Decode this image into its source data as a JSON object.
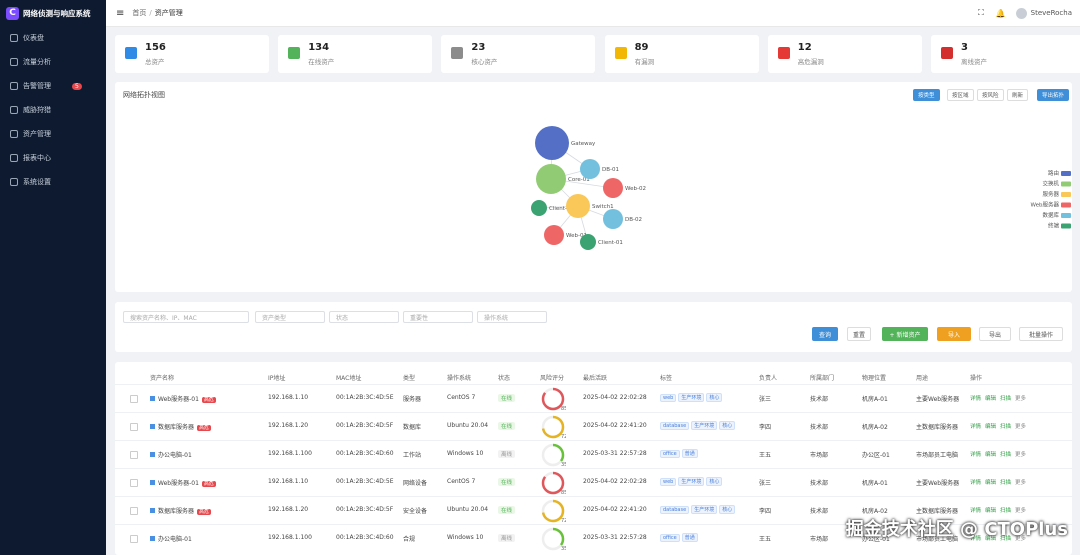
{
  "sidebar": {
    "logo": "网络侦测与响应系统",
    "menu": [
      {
        "label": "仪表盘"
      },
      {
        "label": "流量分析"
      },
      {
        "label": "告警管理",
        "badge": "5"
      },
      {
        "label": "威胁狩猎"
      },
      {
        "label": "资产管理"
      },
      {
        "label": "报表中心"
      },
      {
        "label": "系统设置"
      }
    ]
  },
  "header": {
    "breadcrumb": [
      "首页",
      "资产管理"
    ],
    "user": "SteveRocha"
  },
  "stats": [
    {
      "value": 156,
      "label": "总资产",
      "color": "#2f8be6"
    },
    {
      "value": 134,
      "label": "在线资产",
      "color": "#52b35a"
    },
    {
      "value": 23,
      "label": "核心资产",
      "color": "#8c8c8c"
    },
    {
      "value": 89,
      "label": "有漏洞",
      "color": "#f2b705"
    },
    {
      "value": 12,
      "label": "高危漏洞",
      "color": "#e53935"
    },
    {
      "value": 3,
      "label": "离线资产",
      "color": "#d32f2f"
    }
  ],
  "topology": {
    "title": "网络拓扑视图",
    "buttons": [
      "按类型",
      "按区域",
      "按风险",
      "刷新",
      "导出拓扑"
    ],
    "nodes": [
      {
        "label": "Gateway",
        "color": "#5470c6"
      },
      {
        "label": "Core-01",
        "color": "#91cc75"
      },
      {
        "label": "DB-01",
        "color": "#73c0de"
      },
      {
        "label": "Web-02",
        "color": "#ee6666"
      },
      {
        "label": "Client-02",
        "color": "#3ba272"
      },
      {
        "label": "Switch1",
        "color": "#fac858"
      },
      {
        "label": "DB-02",
        "color": "#73c0de"
      },
      {
        "label": "Web-01",
        "color": "#ee6666"
      },
      {
        "label": "Client-01",
        "color": "#3ba272"
      }
    ],
    "legend": [
      {
        "label": "路由",
        "color": "#5470c6"
      },
      {
        "label": "交换机",
        "color": "#91cc75"
      },
      {
        "label": "服务器",
        "color": "#fac858"
      },
      {
        "label": "Web服务器",
        "color": "#ee6666"
      },
      {
        "label": "数据库",
        "color": "#73c0de"
      },
      {
        "label": "终端",
        "color": "#3ba272"
      }
    ]
  },
  "filters": {
    "search": "搜索资产名称、IP、MAC",
    "selects": [
      "资产类型",
      "状态",
      "重要性",
      "操作系统"
    ],
    "buttons": [
      "查询",
      "重置",
      "+ 新增资产",
      "导入",
      "导出",
      "批量操作"
    ]
  },
  "table": {
    "columns": [
      "资产名称",
      "IP地址",
      "MAC地址",
      "类型",
      "操作系统",
      "状态",
      "风险评分",
      "最后活跃",
      "标签",
      "负责人",
      "所属部门",
      "物理位置",
      "用途",
      "操作"
    ],
    "actions": [
      "详情",
      "编辑",
      "扫描",
      "更多"
    ],
    "rows": [
      {
        "name": "Web服务器-01",
        "badge": "高危",
        "ip": "192.168.1.10",
        "mac": "00:1A:2B:3C:4D:5E",
        "type": "服务器",
        "os": "CentOS 7",
        "status": "在线",
        "risk": 85,
        "risk_color": "#e0575b",
        "last_active": "2025-04-02 22:02:28",
        "tags": [
          "web",
          "生产环境",
          "核心"
        ],
        "owner": "张三",
        "dept": "技术部",
        "location": "机房A-01",
        "usage": "主要Web服务器"
      },
      {
        "name": "数据库服务器",
        "badge": "高危",
        "ip": "192.168.1.20",
        "mac": "00:1A:2B:3C:4D:5F",
        "type": "数据库",
        "os": "Ubuntu 20.04",
        "status": "在线",
        "risk": 72,
        "risk_color": "#e6b422",
        "last_active": "2025-04-02 22:41:20",
        "tags": [
          "database",
          "生产环境",
          "核心"
        ],
        "owner": "李四",
        "dept": "技术部",
        "location": "机房A-02",
        "usage": "主数据库服务器"
      },
      {
        "name": "办公电脑-01",
        "ip": "192.168.1.100",
        "mac": "00:1A:2B:3C:4D:60",
        "type": "工作站",
        "os": "Windows 10",
        "status": "离线",
        "risk": 35,
        "risk_color": "#67c23a",
        "last_active": "2025-03-31 22:57:28",
        "tags": [
          "office",
          "普通"
        ],
        "owner": "王五",
        "dept": "市场部",
        "location": "办公区-01",
        "usage": "市场部员工电脑"
      },
      {
        "name": "Web服务器-01",
        "badge": "高危",
        "ip": "192.168.1.10",
        "mac": "00:1A:2B:3C:4D:5E",
        "type": "网络设备",
        "os": "CentOS 7",
        "status": "在线",
        "risk": 85,
        "risk_color": "#e0575b",
        "last_active": "2025-04-02 22:02:28",
        "tags": [
          "web",
          "生产环境",
          "核心"
        ],
        "owner": "张三",
        "dept": "技术部",
        "location": "机房A-01",
        "usage": "主要Web服务器"
      },
      {
        "name": "数据库服务器",
        "badge": "高危",
        "ip": "192.168.1.20",
        "mac": "00:1A:2B:3C:4D:5F",
        "type": "安全设备",
        "os": "Ubuntu 20.04",
        "status": "在线",
        "risk": 72,
        "risk_color": "#e6b422",
        "last_active": "2025-04-02 22:41:20",
        "tags": [
          "database",
          "生产环境",
          "核心"
        ],
        "owner": "李四",
        "dept": "技术部",
        "location": "机房A-02",
        "usage": "主数据库服务器"
      },
      {
        "name": "办公电脑-01",
        "ip": "192.168.1.100",
        "mac": "00:1A:2B:3C:4D:60",
        "type": "合规",
        "os": "Windows 10",
        "status": "离线",
        "risk": 35,
        "risk_color": "#67c23a",
        "last_active": "2025-03-31 22:57:28",
        "tags": [
          "office",
          "普通"
        ],
        "owner": "王五",
        "dept": "市场部",
        "location": "办公区-01",
        "usage": "市场部员工电脑"
      }
    ]
  },
  "watermark": "掘金技术社区 @ CTOPlus"
}
